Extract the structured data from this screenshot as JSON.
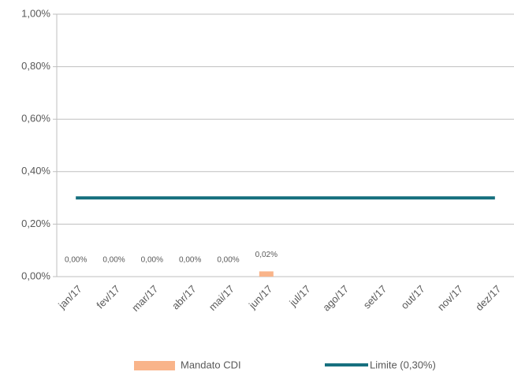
{
  "chart_data": {
    "type": "bar",
    "categories": [
      "jan/17",
      "fev/17",
      "mar/17",
      "abr/17",
      "mai/17",
      "jun/17",
      "jul/17",
      "ago/17",
      "set/17",
      "out/17",
      "nov/17",
      "dez/17"
    ],
    "series": [
      {
        "name": "Mandato CDI",
        "type": "bar",
        "color": "#f9b48a",
        "values": [
          0,
          0,
          0,
          0,
          0,
          0.02,
          null,
          null,
          null,
          null,
          null,
          null
        ],
        "value_labels": [
          "0,00%",
          "0,00%",
          "0,00%",
          "0,00%",
          "0,00%",
          "0,02%",
          null,
          null,
          null,
          null,
          null,
          null
        ]
      },
      {
        "name": "Limite (0,30%)",
        "type": "line",
        "color": "#17707f",
        "values": [
          0.3,
          0.3,
          0.3,
          0.3,
          0.3,
          0.3,
          0.3,
          0.3,
          0.3,
          0.3,
          0.3,
          0.3
        ]
      }
    ],
    "ylim": [
      0,
      1
    ],
    "yticks": [
      {
        "value": 0,
        "label": "0,00%"
      },
      {
        "value": 0.2,
        "label": "0,20%"
      },
      {
        "value": 0.4,
        "label": "0,40%"
      },
      {
        "value": 0.6,
        "label": "0,60%"
      },
      {
        "value": 0.8,
        "label": "0,80%"
      },
      {
        "value": 1,
        "label": "1,00%"
      }
    ],
    "grid": true
  }
}
